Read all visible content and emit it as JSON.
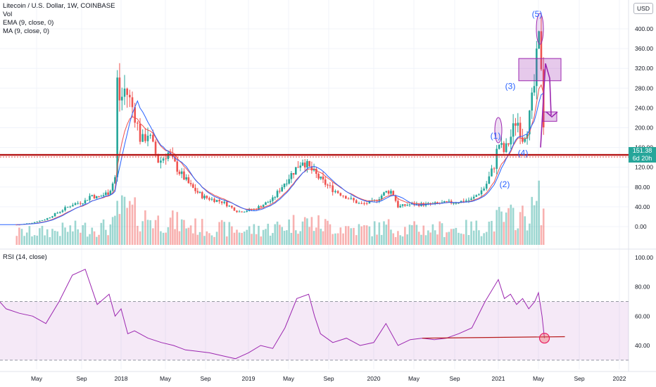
{
  "header": {
    "title": "Litecoin / U.S. Dollar, 1W, COINBASE",
    "indicators": [
      "Vol",
      "EMA (9, close, 0)",
      "MA (9, close, 0)"
    ],
    "currency_badge": "USD",
    "rsi_label": "RSI (14, close)"
  },
  "last_price": {
    "value": "151.38",
    "countdown": "6d 20h"
  },
  "colors": {
    "up": "#26a69a",
    "down": "#ef5350",
    "ema": "#ef5350",
    "ma": "#2962ff",
    "rsi": "#9c27b0",
    "support": "#b71c1c",
    "annotation": "#9c27b0"
  },
  "chart_data": [
    {
      "type": "candlestick",
      "title": "Litecoin / U.S. Dollar, 1W, COINBASE",
      "ylim": [
        -20,
        430
      ],
      "y_ticks": [
        "400.00",
        "360.00",
        "320.00",
        "280.00",
        "240.00",
        "200.00",
        "160.00",
        "120.00",
        "80.00",
        "40.00",
        "0.00"
      ],
      "x_ticks": [
        "May",
        "Sep",
        "2018",
        "May",
        "Sep",
        "2019",
        "May",
        "Sep",
        "2020",
        "May",
        "Sep",
        "2021",
        "May",
        "Sep",
        "2022"
      ],
      "support_level": 145,
      "close_series": [
        [
          2016.6,
          4
        ],
        [
          2016.9,
          4
        ],
        [
          2017.2,
          4
        ],
        [
          2017.3,
          8
        ],
        [
          2017.4,
          15
        ],
        [
          2017.5,
          30
        ],
        [
          2017.6,
          45
        ],
        [
          2017.7,
          52
        ],
        [
          2017.75,
          65
        ],
        [
          2017.8,
          58
        ],
        [
          2017.9,
          70
        ],
        [
          2017.95,
          100
        ],
        [
          2017.97,
          310
        ],
        [
          2017.99,
          250
        ],
        [
          2018.03,
          280
        ],
        [
          2018.1,
          230
        ],
        [
          2018.15,
          170
        ],
        [
          2018.2,
          190
        ],
        [
          2018.28,
          130
        ],
        [
          2018.35,
          150
        ],
        [
          2018.45,
          110
        ],
        [
          2018.55,
          80
        ],
        [
          2018.65,
          60
        ],
        [
          2018.8,
          50
        ],
        [
          2018.92,
          30
        ],
        [
          2019.05,
          35
        ],
        [
          2019.2,
          55
        ],
        [
          2019.3,
          90
        ],
        [
          2019.45,
          135
        ],
        [
          2019.5,
          120
        ],
        [
          2019.6,
          95
        ],
        [
          2019.7,
          75
        ],
        [
          2019.8,
          60
        ],
        [
          2019.9,
          45
        ],
        [
          2020.0,
          50
        ],
        [
          2020.1,
          70
        ],
        [
          2020.15,
          72
        ],
        [
          2020.2,
          40
        ],
        [
          2020.3,
          45
        ],
        [
          2020.45,
          45
        ],
        [
          2020.6,
          48
        ],
        [
          2020.7,
          50
        ],
        [
          2020.8,
          55
        ],
        [
          2020.9,
          80
        ],
        [
          2020.97,
          125
        ],
        [
          2021.0,
          170
        ],
        [
          2021.05,
          150
        ],
        [
          2021.1,
          180
        ],
        [
          2021.15,
          220
        ],
        [
          2021.2,
          180
        ],
        [
          2021.25,
          210
        ],
        [
          2021.3,
          290
        ],
        [
          2021.33,
          380
        ],
        [
          2021.35,
          350
        ],
        [
          2021.37,
          230
        ],
        [
          2021.38,
          151.38
        ]
      ],
      "annotations": [
        "(1)",
        "(2)",
        "(3)",
        "(4)",
        "(5)"
      ]
    },
    {
      "type": "line",
      "title": "RSI (14, close)",
      "ylim": [
        25,
        105
      ],
      "y_ticks": [
        "100.00",
        "80.00",
        "60.00",
        "40.00"
      ],
      "bands": [
        30,
        70
      ],
      "series": [
        {
          "x": [
            2016.35,
            2016.42,
            2016.48,
            2016.55,
            2016.6,
            2016.7,
            2016.8,
            2016.9,
            2017.0,
            2017.1,
            2017.2,
            2017.3,
            2017.4,
            2017.5,
            2017.6,
            2017.7,
            2017.8,
            2017.9,
            2017.95,
            2018.0,
            2018.05,
            2018.1,
            2018.2,
            2018.3,
            2018.4,
            2018.5,
            2018.6,
            2018.7,
            2018.8,
            2018.9,
            2019.0,
            2019.1,
            2019.2,
            2019.3,
            2019.4,
            2019.5,
            2019.55,
            2019.6,
            2019.7,
            2019.8,
            2019.9,
            2020.0,
            2020.1,
            2020.2,
            2020.3,
            2020.4,
            2020.5,
            2020.6,
            2020.7,
            2020.8,
            2020.9,
            2021.0,
            2021.05,
            2021.1,
            2021.15,
            2021.2,
            2021.25,
            2021.3,
            2021.33,
            2021.36,
            2021.38
          ],
          "y": [
            50,
            45,
            60,
            95,
            98,
            85,
            80,
            82,
            75,
            65,
            62,
            60,
            55,
            70,
            88,
            92,
            68,
            75,
            60,
            65,
            48,
            50,
            45,
            42,
            40,
            37,
            36,
            35,
            33,
            31,
            35,
            40,
            38,
            52,
            72,
            75,
            60,
            48,
            42,
            45,
            40,
            42,
            55,
            40,
            44,
            45,
            44,
            45,
            48,
            52,
            70,
            85,
            72,
            75,
            68,
            72,
            65,
            70,
            76,
            60,
            45
          ]
        }
      ],
      "trendline": [
        [
          2020.4,
          45
        ],
        [
          2021.55,
          46
        ]
      ]
    }
  ]
}
